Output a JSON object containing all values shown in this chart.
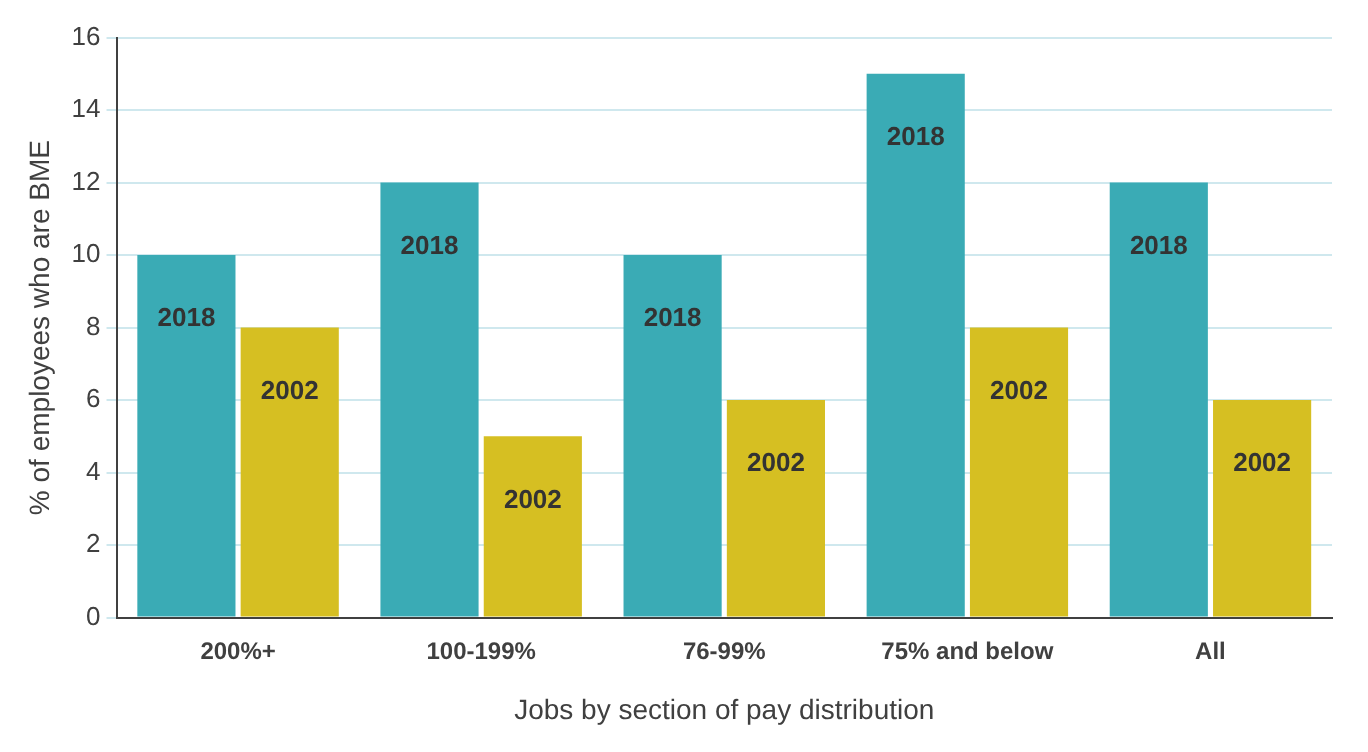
{
  "chart_data": {
    "type": "bar",
    "xlabel": "Jobs by section of pay distribution",
    "ylabel": "% of employees who are BME",
    "categories": [
      "200%+",
      "100-199%",
      "76-99%",
      "75% and below",
      "All"
    ],
    "series": [
      {
        "name": "2018",
        "color": "#3aabb5",
        "values": [
          10,
          12,
          10,
          15,
          12
        ]
      },
      {
        "name": "2002",
        "color": "#d6bf22",
        "values": [
          8,
          5,
          6,
          8,
          6
        ]
      }
    ],
    "ylim": [
      0,
      16
    ],
    "yticks": [
      0,
      2,
      4,
      6,
      8,
      10,
      12,
      14,
      16
    ],
    "grid": "y",
    "legend": false
  }
}
